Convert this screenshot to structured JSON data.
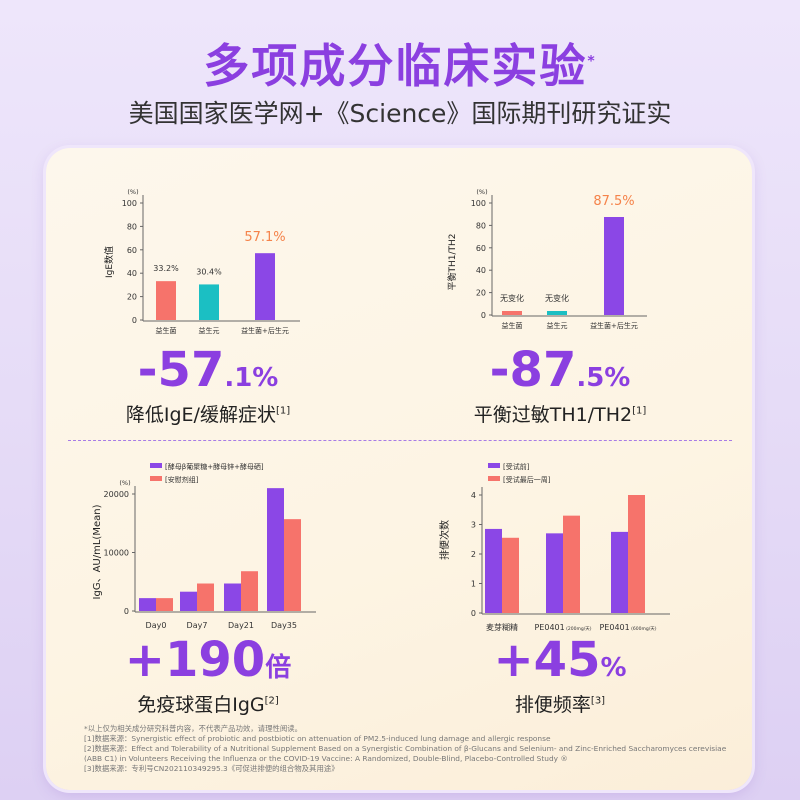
{
  "header": {
    "title": "多项成分临床实验",
    "title_mark": "*",
    "subtitle": "美国国家医学网+《Science》国际期刊研究证实"
  },
  "colors": {
    "purple": "#8b47e6",
    "salmon": "#f6736b",
    "teal": "#1bbfc3",
    "orange": "#f5834a"
  },
  "panels": [
    {
      "big_main": "-57",
      "big_suffix": ".1%",
      "caption": "降低IgE/缓解症状",
      "ref": "[1]"
    },
    {
      "big_main": "-87",
      "big_suffix": ".5%",
      "caption": "平衡过敏TH1/TH2",
      "ref": "[1]"
    },
    {
      "big_main": "+190",
      "big_suffix": "倍",
      "caption": "免疫球蛋白IgG",
      "ref": "[2]"
    },
    {
      "big_main": "+45",
      "big_suffix": "%",
      "caption": "排便频率",
      "ref": "[3]"
    }
  ],
  "chart_data": [
    {
      "type": "bar",
      "ylabel": "IgE数值",
      "unit": "(%)",
      "ylim": [
        0,
        100
      ],
      "yticks": [
        0,
        20,
        40,
        60,
        80,
        100
      ],
      "categories": [
        "益生菌",
        "益生元",
        "益生菌+后生元"
      ],
      "values": [
        33.2,
        30.4,
        57.1
      ],
      "data_labels": [
        "33.2%",
        "30.4%",
        "57.1%"
      ],
      "bar_colors": [
        "#f6736b",
        "#1bbfc3",
        "#8b47e6"
      ]
    },
    {
      "type": "bar",
      "ylabel": "平衡TH1/TH2",
      "unit": "(%)",
      "ylim": [
        0,
        100
      ],
      "yticks": [
        0,
        20,
        40,
        60,
        80,
        100
      ],
      "categories": [
        "益生菌",
        "益生元",
        "益生菌+后生元"
      ],
      "values": [
        0,
        0,
        87.5
      ],
      "data_labels": [
        "无变化",
        "无变化",
        "87.5%"
      ],
      "bar_colors": [
        "#f6736b",
        "#1bbfc3",
        "#8b47e6"
      ]
    },
    {
      "type": "bar",
      "ylabel": "IgG、AU/mL(Mean)",
      "unit": "(%)",
      "ylim": [
        0,
        20000
      ],
      "yticks": [
        0,
        10000,
        20000
      ],
      "categories": [
        "Day0",
        "Day7",
        "Day21",
        "Day35"
      ],
      "series": [
        {
          "name": "[酵母β葡聚糖+酵母锌+酵母硒]",
          "values": [
            2200,
            3300,
            4700,
            21000
          ]
        },
        {
          "name": "[安慰剂组]",
          "values": [
            2200,
            4700,
            6800,
            15700
          ]
        }
      ]
    },
    {
      "type": "bar",
      "ylabel": "排便次数",
      "ylim": [
        0,
        4
      ],
      "yticks": [
        0,
        1,
        2,
        3,
        4
      ],
      "categories": [
        "麦芽糊精",
        "PE0401",
        "PE0401"
      ],
      "category_notes": [
        "",
        "(200mg/天)",
        "(600mg/天)"
      ],
      "series": [
        {
          "name": "[受试前]",
          "values": [
            2.85,
            2.7,
            2.75
          ]
        },
        {
          "name": "[受试最后一周]",
          "values": [
            2.55,
            3.3,
            4.0
          ]
        }
      ]
    }
  ],
  "notes": [
    "*以上仅为相关成分研究科普内容，不代表产品功效，请理性阅读。",
    "[1]数据来源：Synergistic effect of probiotic and postbiotic on attenuation of PM2.5-induced lung damage and allergic response",
    "[2]数据来源：Effect and Tolerability of a Nutritional Supplement Based on a Synergistic Combination of β-Glucans and Selenium- and Zinc-Enriched Saccharomyces cerevisiae (ABB C1) in Volunteers Receiving the Influenza or the COVID-19 Vaccine: A Randomized, Double-Blind, Placebo-Controlled Study ®",
    "[3]数据来源：专利号CN202110349295.3《可促进排便的组合物及其用途》"
  ]
}
